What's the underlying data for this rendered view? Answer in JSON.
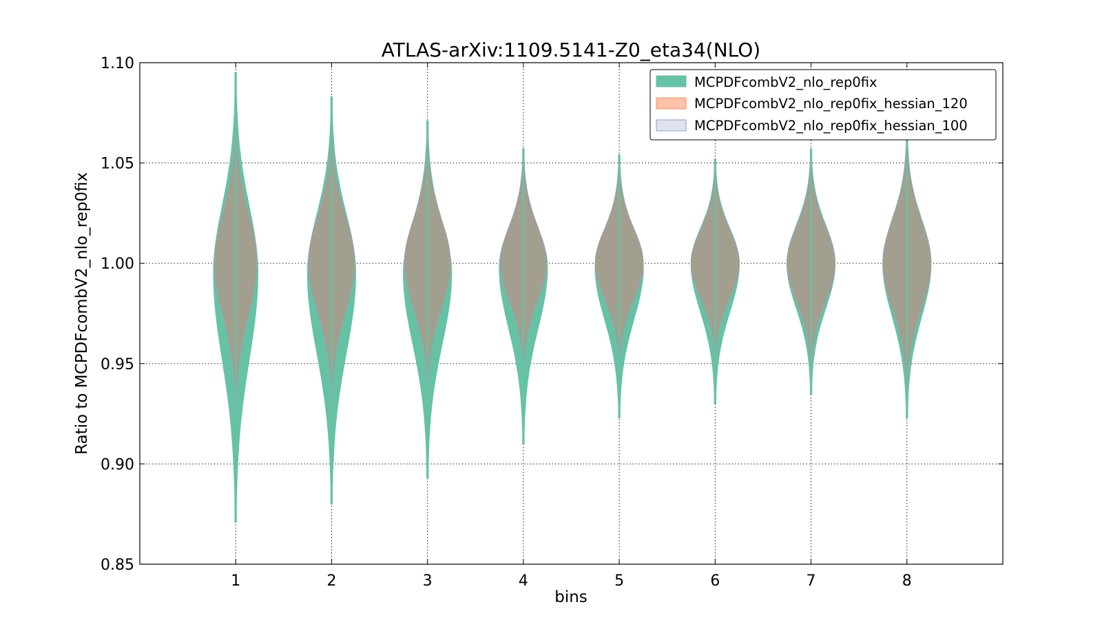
{
  "chart_data": {
    "type": "violin",
    "title": "ATLAS-arXiv:1109.5141-Z0_eta34(NLO)",
    "xlabel": "bins",
    "ylabel": "Ratio to MCPDFcombV2_nlo_rep0fix",
    "ylim": [
      0.85,
      1.1
    ],
    "xlim": [
      0,
      9
    ],
    "yticks": [
      "0.85",
      "0.90",
      "0.95",
      "1.00",
      "1.05",
      "1.10"
    ],
    "xticks": [
      "1",
      "2",
      "3",
      "4",
      "5",
      "6",
      "7",
      "8"
    ],
    "grid": true,
    "legend_position": "top-right",
    "series": [
      {
        "name": "MCPDFcombV2_nlo_rep0fix",
        "color": "#66c2a5",
        "bins": [
          {
            "x": 1,
            "min": 0.871,
            "max": 1.095,
            "center": 0.995,
            "halfwidth": 0.23
          },
          {
            "x": 2,
            "min": 0.88,
            "max": 1.083,
            "center": 0.995,
            "halfwidth": 0.25
          },
          {
            "x": 3,
            "min": 0.893,
            "max": 1.071,
            "center": 0.995,
            "halfwidth": 0.25
          },
          {
            "x": 4,
            "min": 0.91,
            "max": 1.057,
            "center": 0.998,
            "halfwidth": 0.25
          },
          {
            "x": 5,
            "min": 0.923,
            "max": 1.054,
            "center": 0.998,
            "halfwidth": 0.25
          },
          {
            "x": 6,
            "min": 0.93,
            "max": 1.052,
            "center": 1.0,
            "halfwidth": 0.25
          },
          {
            "x": 7,
            "min": 0.935,
            "max": 1.057,
            "center": 1.0,
            "halfwidth": 0.25
          },
          {
            "x": 8,
            "min": 0.923,
            "max": 1.066,
            "center": 1.0,
            "halfwidth": 0.25
          }
        ]
      },
      {
        "name": "MCPDFcombV2_nlo_rep0fix_hessian_120",
        "color": "#fc8d62",
        "bins": [
          {
            "x": 1,
            "min": 0.925,
            "max": 1.075,
            "center": 1.0,
            "halfwidth": 0.22
          },
          {
            "x": 2,
            "min": 0.93,
            "max": 1.07,
            "center": 1.0,
            "halfwidth": 0.24
          },
          {
            "x": 3,
            "min": 0.935,
            "max": 1.066,
            "center": 1.0,
            "halfwidth": 0.24
          },
          {
            "x": 4,
            "min": 0.945,
            "max": 1.056,
            "center": 1.0,
            "halfwidth": 0.24
          },
          {
            "x": 5,
            "min": 0.948,
            "max": 1.052,
            "center": 1.0,
            "halfwidth": 0.25
          },
          {
            "x": 6,
            "min": 0.95,
            "max": 1.05,
            "center": 1.0,
            "halfwidth": 0.25
          },
          {
            "x": 7,
            "min": 0.945,
            "max": 1.055,
            "center": 1.0,
            "halfwidth": 0.25
          },
          {
            "x": 8,
            "min": 0.935,
            "max": 1.065,
            "center": 1.0,
            "halfwidth": 0.25
          }
        ]
      },
      {
        "name": "MCPDFcombV2_nlo_rep0fix_hessian_100",
        "color": "#8da0cb",
        "bins": [
          {
            "x": 1,
            "min": 0.925,
            "max": 1.075,
            "center": 1.0,
            "halfwidth": 0.22
          },
          {
            "x": 2,
            "min": 0.93,
            "max": 1.07,
            "center": 1.0,
            "halfwidth": 0.24
          },
          {
            "x": 3,
            "min": 0.935,
            "max": 1.066,
            "center": 1.0,
            "halfwidth": 0.24
          },
          {
            "x": 4,
            "min": 0.945,
            "max": 1.056,
            "center": 1.0,
            "halfwidth": 0.24
          },
          {
            "x": 5,
            "min": 0.948,
            "max": 1.052,
            "center": 1.0,
            "halfwidth": 0.25
          },
          {
            "x": 6,
            "min": 0.95,
            "max": 1.05,
            "center": 1.0,
            "halfwidth": 0.25
          },
          {
            "x": 7,
            "min": 0.945,
            "max": 1.055,
            "center": 1.0,
            "halfwidth": 0.25
          },
          {
            "x": 8,
            "min": 0.935,
            "max": 1.065,
            "center": 1.0,
            "halfwidth": 0.25
          }
        ]
      }
    ]
  },
  "colors": {
    "overlap_fill": "#a39e8e",
    "legend_fill_1": "#66c2a5",
    "legend_fill_2": "#fdc1a7",
    "legend_fill_3": "#dfe4f0"
  }
}
